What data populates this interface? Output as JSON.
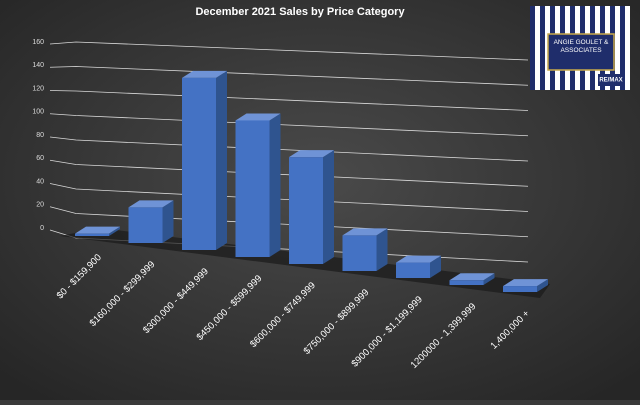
{
  "chart_data": {
    "type": "bar3d",
    "title": "December 2021 Sales by Price Category",
    "categories": [
      "$0 - $159,900",
      "$160,000 - $299,999",
      "$300,000 - $449,999",
      "$450,000 - $599,999",
      "$600,000 - $749,999",
      "$750,000 - $899,999",
      "$900,000 - $1,199,999",
      "1200000 - 1,399,999",
      "1,400,000 +"
    ],
    "values": [
      2,
      30,
      145,
      115,
      90,
      30,
      13,
      4,
      5
    ],
    "color": "#4472c4",
    "ylim": [
      0,
      160
    ],
    "yticks": [
      0,
      20,
      40,
      60,
      80,
      100,
      120,
      140,
      160
    ],
    "grid": true
  },
  "logo": {
    "name": "ANGIE GOULET & ASSOCIATES",
    "brand": "RE/MAX"
  }
}
